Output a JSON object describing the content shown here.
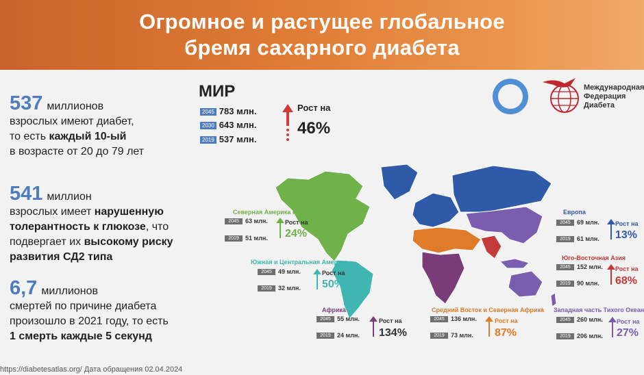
{
  "header": {
    "line1": "Огромное и растущее глобальное",
    "line2": "бремя сахарного диабета"
  },
  "stats": [
    {
      "big": "537",
      "lines": [
        "миллионов",
        "взрослых имеют диабет,",
        "то есть ",
        "каждый 10-ый",
        "в возрасте от 20 до 79 лет"
      ]
    },
    {
      "big": "541",
      "lines": [
        "миллион",
        "взрослых имеет ",
        "нарушенную",
        "толерантность к глюкозе",
        ", что",
        "подвергает их ",
        "высокому риску",
        "развития СД2 типа"
      ]
    },
    {
      "big": "6,7",
      "lines": [
        "миллионов",
        "смертей по причине диабета",
        "произошло в 2021 году, то есть",
        "1 смерть каждые 5 секунд"
      ]
    }
  ],
  "source": "https://diabetesatlas.org/ Дата обращения 02.04.2024",
  "world": {
    "title": "МИР",
    "rows": [
      {
        "year": "2045",
        "value": "783 млн."
      },
      {
        "year": "2030",
        "value": "643 млн."
      },
      {
        "year": "2019",
        "value": "537 млн."
      }
    ],
    "growth_label": "Рост на",
    "growth_value": "46%"
  },
  "logo": {
    "line1": "Международная",
    "line2": "Федерация",
    "line3": "Диабета"
  },
  "colors": {
    "na": "#6fb24a",
    "sa": "#3fb6b2",
    "eu": "#2e5aa8",
    "af": "#7a3c78",
    "me": "#e07b2a",
    "sea": "#c43a3a",
    "wp": "#7b5db0",
    "blue": "#4f7cbf",
    "red": "#d33b3b"
  },
  "regions": [
    {
      "key": "na",
      "name": "Северная Америка и Карибы",
      "y2045": "63 млн.",
      "y2019": "51 млн.",
      "growth_label": "Рост на",
      "growth": "24%"
    },
    {
      "key": "sa",
      "name": "Южная и Центральная Америка",
      "y2045": "49 млн.",
      "y2019": "32 млн.",
      "growth_label": "Рост на",
      "growth": "50%"
    },
    {
      "key": "af",
      "name": "Африка",
      "y2045": "55 млн.",
      "y2019": "24 млн.",
      "growth_label": "Рост на",
      "growth": "134%"
    },
    {
      "key": "me",
      "name": "Средний Восток и Северная Африка",
      "y2045": "136 млн.",
      "y2019": "73 млн.",
      "growth_label": "Рост на",
      "growth": "87%"
    },
    {
      "key": "eu",
      "name": "Европа",
      "y2045": "69 млн.",
      "y2019": "61 млн.",
      "growth_label": "Рост на",
      "growth": "13%"
    },
    {
      "key": "sea",
      "name": "Юго-Восточная Азия",
      "y2045": "152 млн.",
      "y2019": "90 млн.",
      "growth_label": "Рост на",
      "growth": "68%"
    },
    {
      "key": "wp",
      "name": "Западная часть Тихого Океана",
      "y2045": "260 млн.",
      "y2019": "206 млн.",
      "growth_label": "Рост на",
      "growth": "27%"
    }
  ],
  "years": {
    "a": "2045",
    "b": "2019"
  }
}
